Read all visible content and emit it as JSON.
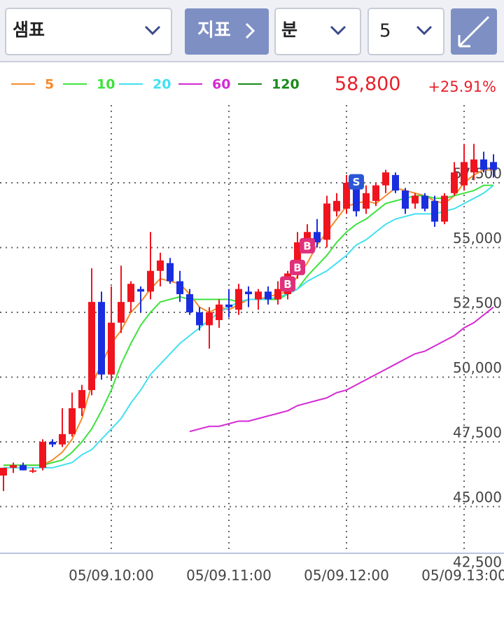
{
  "toolbar": {
    "stock": "샘표",
    "indicator": "지표",
    "unit": "분",
    "interval": "5"
  },
  "quote": {
    "price": "58,800",
    "change": "+25.91%"
  },
  "chart_data": {
    "type": "candlestick",
    "categories": [
      null,
      null,
      null,
      null,
      null,
      null,
      null,
      null,
      null,
      null,
      null,
      "05/09.10:00",
      null,
      null,
      null,
      null,
      null,
      null,
      null,
      null,
      null,
      null,
      null,
      "05/09.11:00",
      null,
      null,
      null,
      null,
      null,
      null,
      null,
      null,
      null,
      null,
      null,
      "05/09.12:00",
      null,
      null,
      null,
      null,
      null,
      null,
      null,
      null,
      null,
      null,
      null,
      "05/09.13:00",
      null,
      null,
      null
    ],
    "open": [
      46200,
      46500,
      46600,
      46400,
      46500,
      47500,
      47400,
      47800,
      48800,
      49500,
      52900,
      50100,
      52100,
      52900,
      53400,
      53300,
      54100,
      54400,
      53700,
      53200,
      52500,
      52000,
      52200,
      52800,
      52600,
      53300,
      53000,
      53300,
      53000,
      53200,
      54000,
      55200,
      55600,
      55300,
      56400,
      56500,
      57500,
      56500,
      56800,
      57400,
      57800,
      57200,
      56700,
      57000,
      56800,
      56000,
      57100,
      57400,
      57900,
      58400,
      58300
    ],
    "high": [
      46500,
      46700,
      46700,
      46500,
      47600,
      47600,
      48800,
      49400,
      49700,
      54200,
      53300,
      53500,
      54300,
      53700,
      53500,
      55600,
      54800,
      54600,
      54100,
      53400,
      52700,
      52700,
      53000,
      53400,
      53600,
      53500,
      53400,
      53500,
      53700,
      54100,
      55600,
      55900,
      56100,
      57000,
      57100,
      57800,
      57700,
      57400,
      57500,
      58000,
      57900,
      57300,
      57100,
      57100,
      57000,
      57100,
      58300,
      59000,
      59000,
      58700,
      58600
    ],
    "low": [
      45600,
      46300,
      46400,
      46300,
      46400,
      47300,
      47300,
      47700,
      48500,
      49300,
      49900,
      49900,
      51700,
      52500,
      52500,
      53000,
      53500,
      53600,
      52900,
      52400,
      51800,
      51100,
      51900,
      52300,
      52400,
      52700,
      52600,
      52800,
      52800,
      53000,
      53800,
      54800,
      55000,
      55000,
      56200,
      56300,
      56200,
      56300,
      56600,
      57100,
      57100,
      56300,
      56500,
      56400,
      55800,
      55900,
      57000,
      57200,
      57600,
      57900,
      57700
    ],
    "close": [
      46500,
      46600,
      46400,
      46400,
      47500,
      47400,
      47800,
      48800,
      49500,
      52900,
      50100,
      52100,
      52900,
      53600,
      53300,
      54100,
      54500,
      53700,
      53200,
      52500,
      52000,
      52500,
      52800,
      52700,
      53400,
      53200,
      53300,
      53000,
      53400,
      54000,
      55200,
      55600,
      55200,
      56700,
      56800,
      57500,
      56400,
      57100,
      57400,
      57900,
      57200,
      56500,
      57000,
      56500,
      56000,
      57000,
      57900,
      58300,
      58400,
      58000,
      58000
    ],
    "up_color": "#f0141e",
    "down_color": "#1a2ee0",
    "ylim": [
      43200,
      60500
    ],
    "yticks": [
      {
        "value": 42500,
        "label": "42,500"
      },
      {
        "value": 45000,
        "label": "45,000"
      },
      {
        "value": 47500,
        "label": "47,500"
      },
      {
        "value": 50000,
        "label": "50,000"
      },
      {
        "value": 52500,
        "label": "52,500"
      },
      {
        "value": 55000,
        "label": "55,000"
      },
      {
        "value": 57500,
        "label": "57,500"
      }
    ],
    "grid": true,
    "series": [
      {
        "name": "5",
        "color": "#f58a2a",
        "values": [
          46600,
          46600,
          46600,
          46600,
          46600,
          46800,
          47100,
          47600,
          48400,
          49700,
          50500,
          51300,
          51800,
          52500,
          52900,
          53400,
          53800,
          53700,
          53600,
          53200,
          52700,
          52500,
          52700,
          52600,
          52800,
          53000,
          53000,
          53100,
          53200,
          53300,
          53900,
          54400,
          55100,
          55600,
          56100,
          56600,
          56700,
          56800,
          56700,
          57000,
          57300,
          57200,
          57100,
          57000,
          56800,
          56700,
          57000,
          57500,
          57800,
          58000,
          58000
        ]
      },
      {
        "name": "10",
        "color": "#3ee23e",
        "values": [
          46600,
          46600,
          46600,
          46600,
          46600,
          46700,
          46800,
          47100,
          47500,
          48000,
          48700,
          49500,
          50500,
          51300,
          52000,
          52500,
          52900,
          53000,
          53100,
          53000,
          53000,
          53000,
          53000,
          53000,
          52900,
          53000,
          53000,
          53000,
          53000,
          53200,
          53400,
          53900,
          54300,
          54700,
          55200,
          55600,
          55900,
          56100,
          56400,
          56700,
          56800,
          56900,
          57000,
          57000,
          56900,
          56900,
          57000,
          57100,
          57200,
          57400,
          57400
        ]
      },
      {
        "name": "20",
        "color": "#42e0f0",
        "values": [
          46500,
          46500,
          46500,
          46500,
          46500,
          46500,
          46600,
          46700,
          47000,
          47200,
          47600,
          48000,
          48400,
          49000,
          49500,
          50100,
          50500,
          50900,
          51300,
          51600,
          51900,
          52200,
          52500,
          52700,
          52900,
          53000,
          53000,
          53000,
          53100,
          53200,
          53400,
          53700,
          53900,
          54100,
          54400,
          54700,
          55100,
          55300,
          55600,
          55900,
          56100,
          56200,
          56300,
          56300,
          56300,
          56400,
          56500,
          56700,
          56900,
          57100,
          57400
        ]
      },
      {
        "name": "60",
        "color": "#d42ad4",
        "values": [
          null,
          null,
          null,
          null,
          null,
          null,
          null,
          null,
          null,
          null,
          null,
          null,
          null,
          null,
          null,
          null,
          null,
          null,
          null,
          47900,
          48000,
          48100,
          48100,
          48200,
          48300,
          48300,
          48400,
          48500,
          48600,
          48700,
          48900,
          49000,
          49100,
          49200,
          49400,
          49500,
          49700,
          49900,
          50100,
          50300,
          50500,
          50700,
          50900,
          51000,
          51200,
          51400,
          51600,
          51900,
          52100,
          52400,
          52700
        ]
      },
      {
        "name": "120",
        "color": "#1a8a1a",
        "values": [
          null,
          null,
          null,
          null,
          null,
          null,
          null,
          null,
          null,
          null,
          null,
          null,
          null,
          null,
          null,
          null,
          null,
          null,
          null,
          null,
          null,
          null,
          null,
          null,
          null,
          null,
          null,
          null,
          null,
          null,
          null,
          null,
          null,
          null,
          null,
          null,
          null,
          null,
          null,
          null,
          null,
          null,
          null,
          null,
          null,
          null,
          null,
          null,
          null,
          null,
          null
        ]
      }
    ],
    "signals": [
      {
        "label": "S",
        "at": 36,
        "color": "#2a56d6"
      },
      {
        "label": "B",
        "at": 29,
        "color": "#e0307a"
      },
      {
        "label": "B",
        "at": 30,
        "color": "#e0307a"
      },
      {
        "label": "B",
        "at": 31,
        "color": "#e0307a"
      }
    ]
  }
}
